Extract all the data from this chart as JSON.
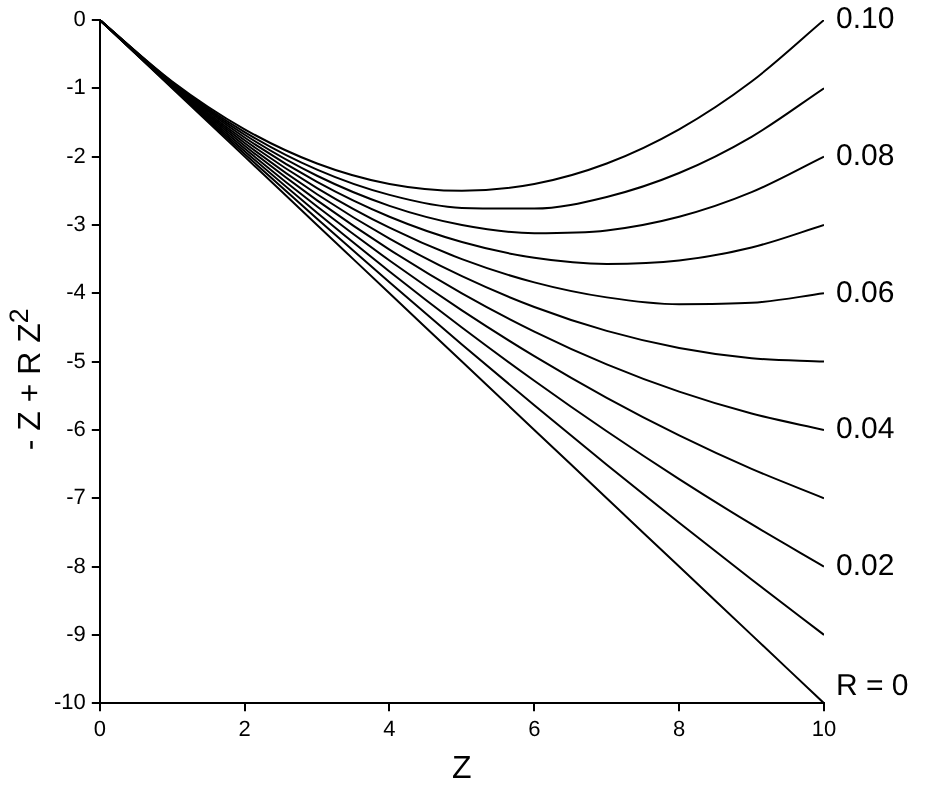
{
  "chart_data": {
    "type": "line",
    "xlabel": "Z",
    "ylabel": "- Z + R Z$^{2}$",
    "x": [
      0,
      1,
      2,
      3,
      4,
      5,
      6,
      7,
      8,
      9,
      10
    ],
    "xlim": [
      0,
      10
    ],
    "xticks": [
      0,
      2,
      4,
      6,
      8,
      10
    ],
    "ylim": [
      -10,
      0
    ],
    "yticks": [
      -10,
      -9,
      -8,
      -7,
      -6,
      -5,
      -4,
      -3,
      -2,
      -1,
      0
    ],
    "grid": false,
    "legend": false,
    "marker": "none",
    "line_style": "solid",
    "series": [
      {
        "name": "R = 0",
        "color": "#000000",
        "values": [
          0,
          -1,
          -2,
          -3,
          -4,
          -5,
          -6,
          -7,
          -8,
          -9,
          -10
        ]
      },
      {
        "color": "#000000",
        "values": [
          0,
          -0.99,
          -1.96,
          -2.91,
          -3.84,
          -4.75,
          -5.64,
          -6.51,
          -7.36,
          -8.19,
          -9
        ]
      },
      {
        "name": "0.02",
        "color": "#000000",
        "values": [
          0,
          -0.98,
          -1.92,
          -2.82,
          -3.68,
          -4.5,
          -5.28,
          -6.02,
          -6.72,
          -7.38,
          -8
        ]
      },
      {
        "color": "#000000",
        "values": [
          0,
          -0.97,
          -1.88,
          -2.73,
          -3.52,
          -4.25,
          -4.92,
          -5.53,
          -6.08,
          -6.57,
          -7
        ]
      },
      {
        "name": "0.04",
        "color": "#000000",
        "values": [
          0,
          -0.96,
          -1.84,
          -2.64,
          -3.36,
          -4,
          -4.56,
          -5.04,
          -5.44,
          -5.76,
          -6
        ]
      },
      {
        "color": "#000000",
        "values": [
          0,
          -0.95,
          -1.8,
          -2.55,
          -3.2,
          -3.75,
          -4.2,
          -4.55,
          -4.8,
          -4.95,
          -5
        ]
      },
      {
        "name": "0.06",
        "color": "#000000",
        "values": [
          0,
          -0.94,
          -1.76,
          -2.46,
          -3.04,
          -3.5,
          -3.84,
          -4.06,
          -4.16,
          -4.14,
          -4
        ]
      },
      {
        "color": "#000000",
        "values": [
          0,
          -0.93,
          -1.72,
          -2.37,
          -2.88,
          -3.25,
          -3.48,
          -3.57,
          -3.52,
          -3.33,
          -3
        ]
      },
      {
        "name": "0.08",
        "color": "#000000",
        "values": [
          0,
          -0.92,
          -1.68,
          -2.28,
          -2.72,
          -3,
          -3.12,
          -3.08,
          -2.88,
          -2.52,
          -2
        ]
      },
      {
        "color": "#000000",
        "values": [
          0,
          -0.91,
          -1.64,
          -2.19,
          -2.56,
          -2.75,
          -2.76,
          -2.59,
          -2.24,
          -1.71,
          -1
        ]
      },
      {
        "name": "0.10",
        "color": "#000000",
        "values": [
          0,
          -0.9,
          -1.6,
          -2.1,
          -2.4,
          -2.5,
          -2.4,
          -2.1,
          -1.6,
          -0.9,
          0
        ]
      }
    ]
  }
}
